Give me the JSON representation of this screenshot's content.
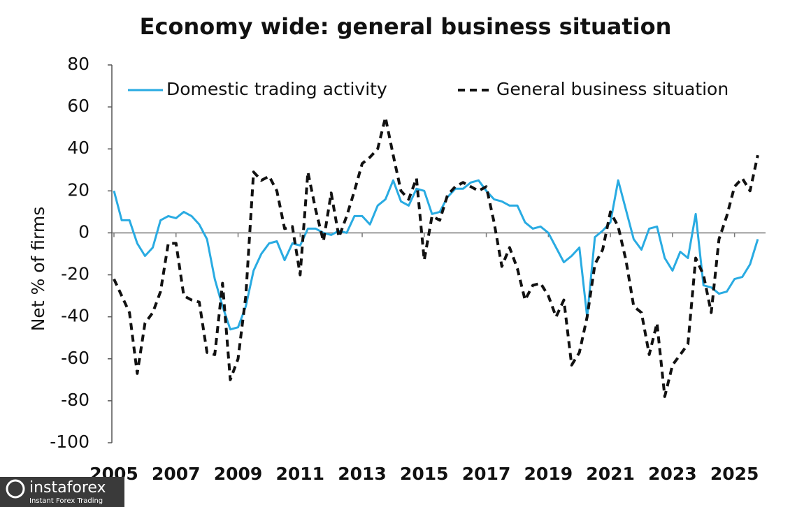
{
  "chart_data": {
    "type": "line",
    "title": "Economy wide: general business situation",
    "y_label": "Net % of firms",
    "watermark": {
      "brand": "instaforex",
      "tagline": "Instant Forex Trading"
    },
    "x": [
      2005,
      2005.25,
      2005.5,
      2005.75,
      2006,
      2006.25,
      2006.5,
      2006.75,
      2007,
      2007.25,
      2007.5,
      2007.75,
      2008,
      2008.25,
      2008.5,
      2008.75,
      2009,
      2009.25,
      2009.5,
      2009.75,
      2010,
      2010.25,
      2010.5,
      2010.75,
      2011,
      2011.25,
      2011.5,
      2011.75,
      2012,
      2012.25,
      2012.5,
      2012.75,
      2013,
      2013.25,
      2013.5,
      2013.75,
      2014,
      2014.25,
      2014.5,
      2014.75,
      2015,
      2015.25,
      2015.5,
      2015.75,
      2016,
      2016.25,
      2016.5,
      2016.75,
      2017,
      2017.25,
      2017.5,
      2017.75,
      2018,
      2018.25,
      2018.5,
      2018.75,
      2019,
      2019.25,
      2019.5,
      2019.75,
      2020,
      2020.25,
      2020.5,
      2020.75,
      2021,
      2021.25,
      2021.5,
      2021.75,
      2022,
      2022.25,
      2022.5,
      2022.75,
      2023,
      2023.25,
      2023.5,
      2023.75,
      2024,
      2024.25,
      2024.5,
      2024.75,
      2025,
      2025.25,
      2025.5,
      2025.75
    ],
    "series": [
      {
        "name": "Domestic trading activity",
        "color": "#29abe2",
        "dash": false,
        "values": [
          20,
          6,
          6,
          -5,
          -11,
          -7,
          6,
          8,
          7,
          10,
          8,
          4,
          -3,
          -22,
          -35,
          -46,
          -45,
          -35,
          -18,
          -10,
          -5,
          -4,
          -13,
          -5,
          -6,
          2,
          2,
          0,
          -1,
          1,
          0,
          8,
          8,
          4,
          13,
          16,
          25,
          15,
          13,
          21,
          20,
          9,
          10,
          17,
          21,
          21,
          24,
          25,
          20,
          16,
          15,
          13,
          13,
          5,
          2,
          3,
          0,
          -7,
          -14,
          -11,
          -7,
          -40,
          -2,
          1,
          5,
          25,
          11,
          -3,
          -8,
          2,
          3,
          -12,
          -18,
          -9,
          -12,
          9,
          -25,
          -26,
          -29,
          -28,
          -22,
          -21,
          -15,
          -3
        ]
      },
      {
        "name": "General business situation",
        "color": "#111111",
        "dash": true,
        "values": [
          -22,
          -30,
          -38,
          -67,
          -43,
          -38,
          -28,
          -5,
          -5,
          -30,
          -32,
          -33,
          -57,
          -58,
          -24,
          -70,
          -60,
          -30,
          29,
          25,
          27,
          20,
          2,
          3,
          -20,
          29,
          11,
          -4,
          19,
          -2,
          8,
          20,
          33,
          36,
          40,
          55,
          37,
          20,
          16,
          26,
          -13,
          8,
          6,
          18,
          22,
          24,
          22,
          20,
          22,
          5,
          -16,
          -7,
          -17,
          -32,
          -25,
          -24,
          -30,
          -40,
          -32,
          -63,
          -57,
          -40,
          -15,
          -8,
          10,
          3,
          -13,
          -35,
          -38,
          -58,
          -43,
          -78,
          -63,
          -58,
          -53,
          -12,
          -20,
          -38,
          -3,
          8,
          22,
          26,
          20,
          37
        ]
      }
    ],
    "xlim": [
      2005,
      2026
    ],
    "xticks": [
      2005,
      2007,
      2009,
      2011,
      2013,
      2015,
      2017,
      2019,
      2021,
      2023,
      2025
    ],
    "ylim": [
      -100,
      80
    ],
    "yticks": [
      -100,
      -80,
      -60,
      -40,
      -20,
      0,
      20,
      40,
      60,
      80
    ],
    "legend": "top"
  }
}
